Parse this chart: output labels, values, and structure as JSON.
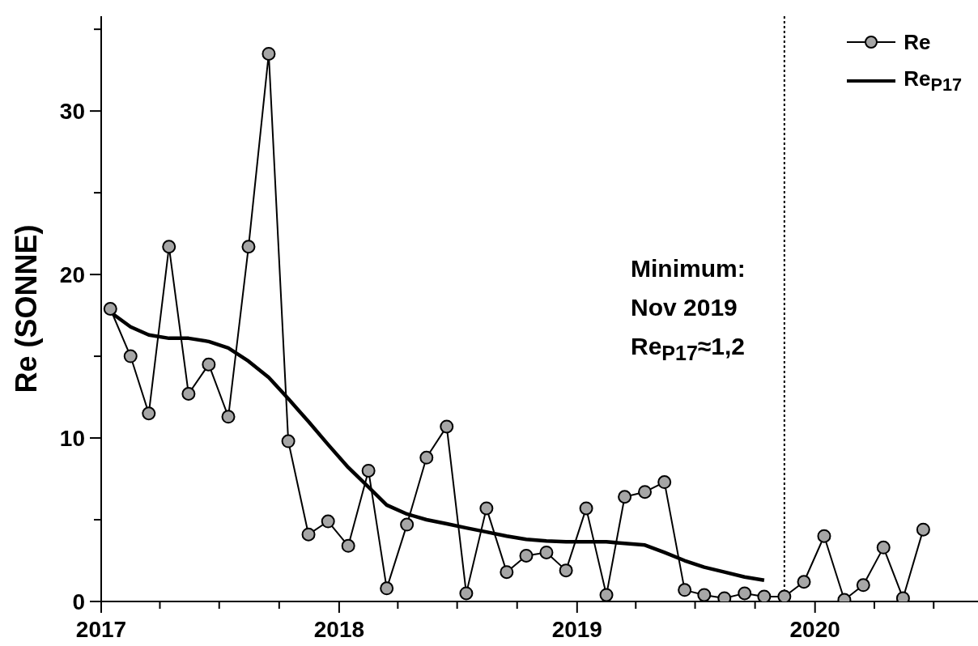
{
  "chart_data": {
    "type": "line",
    "ylabel": "Re (SONNE)",
    "annotations": [
      "Minimum:\nNov 2019\nRe$_{P17}$≈1,2"
    ],
    "xlim": [
      "2017-01-01",
      "2020-09-07"
    ],
    "xticks": [
      "2017",
      "2018",
      "2019",
      "2020",
      {
        "value": "2017-04",
        "label": null
      },
      {
        "value": "2017-07",
        "label": null
      },
      {
        "value": "2017-10",
        "label": null
      },
      {
        "value": "2018-04",
        "label": null
      },
      {
        "value": "2018-07",
        "label": null
      },
      {
        "value": "2018-10",
        "label": null
      },
      {
        "value": "2019-04",
        "label": null
      },
      {
        "value": "2019-07",
        "label": null
      },
      {
        "value": "2019-10",
        "label": null
      },
      {
        "value": "2020-04",
        "label": null
      },
      {
        "value": "2020-07",
        "label": null
      }
    ],
    "ylim": [
      0,
      35.8
    ],
    "yticks": [
      0,
      10,
      20,
      30,
      {
        "value": 5,
        "label": null
      },
      {
        "value": 15,
        "label": null
      },
      {
        "value": 25,
        "label": null
      },
      {
        "value": 35,
        "label": null
      }
    ],
    "grid": false,
    "legend": "top right",
    "marker": "circle",
    "line_style": "solid",
    "ref_lines": [
      {
        "axis": "x",
        "value": "2019-11-15",
        "color": "#000000",
        "line_style": "dotted"
      }
    ],
    "series": [
      {
        "name": "Re",
        "color": "#000000",
        "x": [
          "2017-01-15",
          "2017-02-15",
          "2017-03-15",
          "2017-04-15",
          "2017-05-15",
          "2017-06-15",
          "2017-07-15",
          "2017-08-15",
          "2017-09-15",
          "2017-10-15",
          "2017-11-15",
          "2017-12-15",
          "2018-01-15",
          "2018-02-15",
          "2018-03-15",
          "2018-04-15",
          "2018-05-15",
          "2018-06-15",
          "2018-07-15",
          "2018-08-15",
          "2018-09-15",
          "2018-10-15",
          "2018-11-15",
          "2018-12-15",
          "2019-01-15",
          "2019-02-15",
          "2019-03-15",
          "2019-04-15",
          "2019-05-15",
          "2019-06-15",
          "2019-07-15",
          "2019-08-15",
          "2019-09-15",
          "2019-10-15",
          "2019-11-15",
          "2019-12-15",
          "2020-01-15",
          "2020-02-15",
          "2020-03-15",
          "2020-04-15",
          "2020-05-15",
          "2020-06-15"
        ],
        "values": [
          17.9,
          15.0,
          11.5,
          21.7,
          12.7,
          14.5,
          11.3,
          21.7,
          33.5,
          9.8,
          4.1,
          4.9,
          3.4,
          8.0,
          0.8,
          4.7,
          8.8,
          10.7,
          0.5,
          5.7,
          1.8,
          2.8,
          3.0,
          1.9,
          5.7,
          0.4,
          6.4,
          6.7,
          7.3,
          0.7,
          0.4,
          0.2,
          0.5,
          0.3,
          0.3,
          1.2,
          4.0,
          0.1,
          1.0,
          3.3,
          0.2,
          4.4
        ]
      },
      {
        "name": "Re$_{P17}$",
        "color": "#000000",
        "marker": "none",
        "x": [
          "2017-01-15",
          "2017-02-15",
          "2017-03-15",
          "2017-04-15",
          "2017-05-15",
          "2017-06-15",
          "2017-07-15",
          "2017-08-15",
          "2017-09-15",
          "2017-10-15",
          "2017-11-15",
          "2017-12-15",
          "2018-01-15",
          "2018-02-15",
          "2018-03-15",
          "2018-04-15",
          "2018-05-15",
          "2018-06-15",
          "2018-07-15",
          "2018-08-15",
          "2018-09-15",
          "2018-10-15",
          "2018-11-15",
          "2018-12-15",
          "2019-01-15",
          "2019-02-15",
          "2019-03-15",
          "2019-04-15",
          "2019-05-15",
          "2019-06-15",
          "2019-07-15",
          "2019-08-15",
          "2019-09-15",
          "2019-10-15"
        ],
        "values": [
          17.7,
          16.8,
          16.3,
          16.1,
          16.1,
          15.9,
          15.5,
          14.7,
          13.7,
          12.4,
          11.0,
          9.6,
          8.2,
          7.0,
          5.9,
          5.35,
          5.0,
          4.75,
          4.5,
          4.25,
          4.0,
          3.8,
          3.7,
          3.65,
          3.65,
          3.65,
          3.55,
          3.45,
          3.0,
          2.5,
          2.1,
          1.8,
          1.5,
          1.3
        ]
      }
    ]
  }
}
